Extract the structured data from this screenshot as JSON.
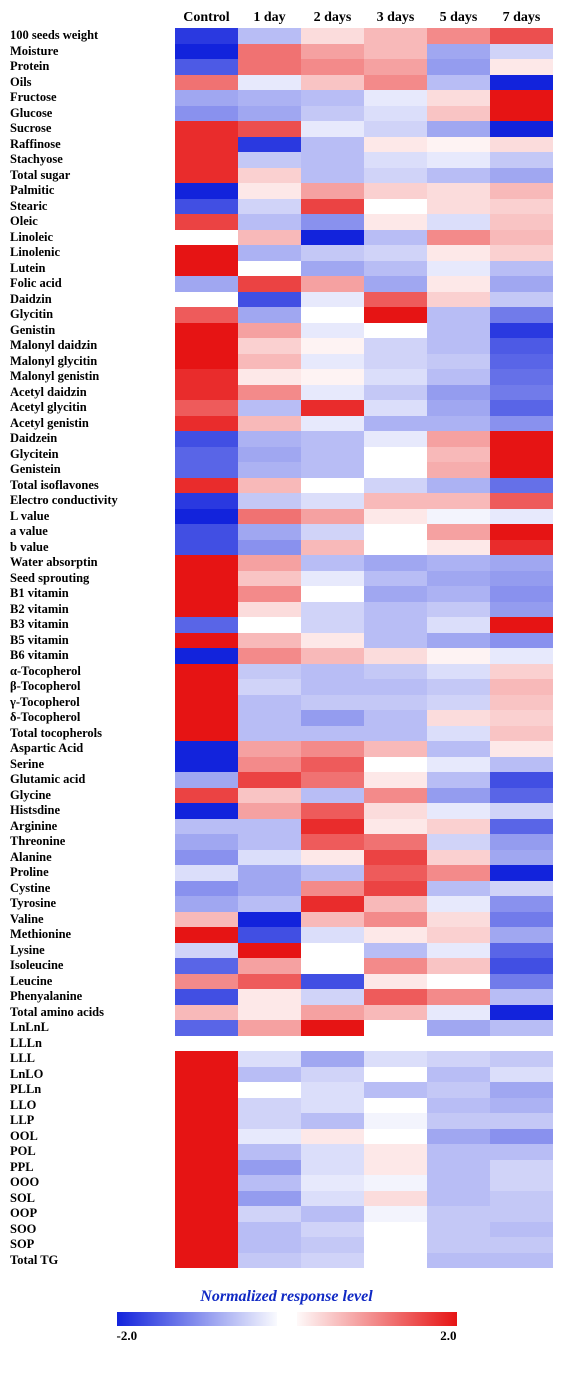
{
  "columns": [
    "Control",
    "1 day",
    "2 days",
    "3 days",
    "5 days",
    "7 days"
  ],
  "legend": {
    "title": "Normalized response level",
    "min": "-2.0",
    "max": "2.0"
  },
  "rows": [
    {
      "label": "100 seeds weight",
      "v": [
        -1.8,
        -0.6,
        0.3,
        0.6,
        1.0,
        1.5
      ]
    },
    {
      "label": "Moisture",
      "v": [
        -2.0,
        1.2,
        0.8,
        0.6,
        -0.8,
        -0.4
      ]
    },
    {
      "label": "Protein",
      "v": [
        -1.5,
        1.2,
        1.0,
        0.8,
        -0.9,
        0.2
      ]
    },
    {
      "label": "Oils",
      "v": [
        1.2,
        -0.2,
        0.5,
        1.0,
        -0.6,
        -2.0
      ]
    },
    {
      "label": "Fructose",
      "v": [
        -0.8,
        -0.7,
        -0.6,
        -0.2,
        0.3,
        2.0
      ]
    },
    {
      "label": "Glucose",
      "v": [
        -1.0,
        -0.8,
        -0.5,
        -0.3,
        0.5,
        2.0
      ]
    },
    {
      "label": "Sucrose",
      "v": [
        1.8,
        1.5,
        -0.2,
        -0.4,
        -0.8,
        -2.0
      ]
    },
    {
      "label": "Raffinose",
      "v": [
        1.8,
        -1.8,
        -0.6,
        0.2,
        0.1,
        0.3
      ]
    },
    {
      "label": "Stachyose",
      "v": [
        1.8,
        -0.5,
        -0.6,
        -0.3,
        -0.2,
        -0.5
      ]
    },
    {
      "label": "Total sugar",
      "v": [
        1.8,
        0.4,
        -0.6,
        -0.4,
        -0.6,
        -0.8
      ]
    },
    {
      "label": "Palmitic",
      "v": [
        -2.0,
        0.2,
        0.8,
        0.4,
        0.3,
        0.6
      ]
    },
    {
      "label": "Stearic",
      "v": [
        -1.6,
        -0.4,
        1.6,
        0.0,
        0.3,
        0.4
      ]
    },
    {
      "label": "Oleic",
      "v": [
        1.6,
        -0.6,
        -1.0,
        0.2,
        -0.3,
        0.5
      ]
    },
    {
      "label": "Linoleic",
      "v": [
        null,
        0.6,
        -2.0,
        -0.6,
        1.0,
        0.6
      ]
    },
    {
      "label": "Linolenic",
      "v": [
        2.0,
        -0.7,
        -0.5,
        -0.4,
        0.2,
        0.4
      ]
    },
    {
      "label": "Lutein",
      "v": [
        2.0,
        0.0,
        -0.8,
        -0.6,
        -0.2,
        -0.6
      ]
    },
    {
      "label": "Folic acid",
      "v": [
        -0.8,
        1.6,
        0.8,
        -0.8,
        0.2,
        -0.8
      ]
    },
    {
      "label": "Daidzin",
      "v": [
        null,
        -1.6,
        -0.2,
        1.4,
        0.4,
        -0.5
      ]
    },
    {
      "label": "Glycitin",
      "v": [
        1.4,
        -0.8,
        0.0,
        2.0,
        -0.6,
        -1.2
      ]
    },
    {
      "label": "Genistin",
      "v": [
        2.0,
        0.8,
        -0.2,
        0.0,
        -0.6,
        -1.8
      ]
    },
    {
      "label": "Malonyl daidzin",
      "v": [
        2.0,
        0.4,
        0.1,
        -0.4,
        -0.6,
        -1.5
      ]
    },
    {
      "label": "Malonyl glycitin",
      "v": [
        2.0,
        0.6,
        -0.2,
        -0.4,
        -0.5,
        -1.4
      ]
    },
    {
      "label": "Malonyl genistin",
      "v": [
        1.8,
        0.2,
        0.1,
        -0.3,
        -0.6,
        -1.3
      ]
    },
    {
      "label": "Acetyl daidzin",
      "v": [
        1.8,
        1.0,
        -0.2,
        -0.5,
        -0.9,
        -1.2
      ]
    },
    {
      "label": "Acetyl glycitin",
      "v": [
        1.4,
        -0.6,
        1.8,
        -0.3,
        -0.8,
        -1.4
      ]
    },
    {
      "label": "Acetyl genistin",
      "v": [
        1.8,
        0.6,
        -0.2,
        -0.7,
        -0.7,
        -1.0
      ]
    },
    {
      "label": "Daidzein",
      "v": [
        -1.6,
        -0.7,
        -0.6,
        -0.2,
        0.8,
        2.0
      ]
    },
    {
      "label": "Glycitein",
      "v": [
        -1.4,
        -0.8,
        -0.6,
        0.0,
        0.6,
        2.0
      ]
    },
    {
      "label": "Genistein",
      "v": [
        -1.4,
        -0.7,
        -0.6,
        0.0,
        0.7,
        2.0
      ]
    },
    {
      "label": "Total isoflavones",
      "v": [
        1.8,
        0.6,
        0.0,
        -0.4,
        -0.7,
        -1.3
      ]
    },
    {
      "label": "Electro conductivity",
      "v": [
        -1.8,
        -0.5,
        -0.3,
        0.6,
        0.6,
        1.4
      ]
    },
    {
      "label": "L value",
      "v": [
        -2.0,
        1.2,
        0.8,
        0.2,
        -0.1,
        -0.2
      ]
    },
    {
      "label": "a value",
      "v": [
        -1.6,
        -0.8,
        -0.4,
        0.0,
        0.8,
        2.0
      ]
    },
    {
      "label": "b value",
      "v": [
        -1.6,
        -1.0,
        0.6,
        0.0,
        0.2,
        1.8
      ]
    },
    {
      "label": "Water absorptin",
      "v": [
        2.0,
        0.8,
        -0.6,
        -0.8,
        -0.7,
        -0.8
      ]
    },
    {
      "label": "Seed sprouting",
      "v": [
        2.0,
        0.5,
        -0.2,
        -0.6,
        -0.8,
        -0.9
      ]
    },
    {
      "label": "B1 vitamin",
      "v": [
        2.0,
        1.0,
        0.0,
        -0.8,
        -0.7,
        -1.0
      ]
    },
    {
      "label": "B2 vitamin",
      "v": [
        2.0,
        0.3,
        -0.4,
        -0.6,
        -0.5,
        -0.9
      ]
    },
    {
      "label": "B3 vitamin",
      "v": [
        -1.4,
        null,
        -0.4,
        -0.6,
        -0.3,
        2.0
      ]
    },
    {
      "label": "B5 vitamin",
      "v": [
        2.0,
        0.6,
        0.2,
        -0.6,
        -0.8,
        -1.0
      ]
    },
    {
      "label": "B6 vitamin",
      "v": [
        -2.0,
        1.0,
        0.6,
        0.3,
        0.1,
        -0.2
      ]
    },
    {
      "label": "α-Tocopherol",
      "v": [
        2.0,
        -0.5,
        -0.6,
        -0.5,
        -0.3,
        0.4
      ]
    },
    {
      "label": "β-Tocopherol",
      "v": [
        2.0,
        -0.4,
        -0.6,
        -0.6,
        -0.5,
        0.6
      ]
    },
    {
      "label": "γ-Tocopherol",
      "v": [
        2.0,
        -0.6,
        -0.5,
        -0.5,
        -0.4,
        0.5
      ]
    },
    {
      "label": "δ-Tocopherol",
      "v": [
        2.0,
        -0.6,
        -0.9,
        -0.6,
        0.3,
        0.4
      ]
    },
    {
      "label": "Total tocopherols",
      "v": [
        2.0,
        -0.6,
        -0.6,
        -0.6,
        -0.3,
        0.5
      ]
    },
    {
      "label": "Aspartic Acid",
      "v": [
        -2.0,
        0.8,
        1.0,
        0.6,
        -0.6,
        0.2
      ]
    },
    {
      "label": "Serine",
      "v": [
        -2.0,
        1.0,
        1.4,
        0.0,
        -0.2,
        -0.6
      ]
    },
    {
      "label": "Glutamic acid",
      "v": [
        -0.8,
        1.6,
        1.2,
        0.2,
        -0.6,
        -1.6
      ]
    },
    {
      "label": "Glycine",
      "v": [
        1.6,
        0.5,
        -0.6,
        1.0,
        -0.9,
        -1.4
      ]
    },
    {
      "label": "Histsdine",
      "v": [
        -2.0,
        0.8,
        1.4,
        0.3,
        -0.2,
        -0.4
      ]
    },
    {
      "label": "Arginine",
      "v": [
        -0.6,
        -0.6,
        1.8,
        0.2,
        0.4,
        -1.4
      ]
    },
    {
      "label": "Threonine",
      "v": [
        -0.8,
        -0.6,
        1.4,
        1.2,
        -0.4,
        -0.9
      ]
    },
    {
      "label": "Alanine",
      "v": [
        -1.0,
        -0.3,
        0.2,
        1.6,
        0.4,
        -0.8
      ]
    },
    {
      "label": "Proline",
      "v": [
        -0.3,
        -0.8,
        -0.6,
        1.4,
        1.0,
        -2.0
      ]
    },
    {
      "label": "Cystine",
      "v": [
        -1.0,
        -0.8,
        1.0,
        1.6,
        -0.6,
        -0.4
      ]
    },
    {
      "label": "Tyrosine",
      "v": [
        -0.8,
        -0.6,
        1.8,
        0.6,
        -0.2,
        -1.0
      ]
    },
    {
      "label": "Valine",
      "v": [
        0.6,
        -2.0,
        0.6,
        1.0,
        0.3,
        -1.2
      ]
    },
    {
      "label": "Methionine",
      "v": [
        2.0,
        -1.6,
        -0.3,
        0.2,
        0.4,
        -0.8
      ]
    },
    {
      "label": "Lysine",
      "v": [
        -0.4,
        2.0,
        0.0,
        -0.6,
        -0.2,
        -1.4
      ]
    },
    {
      "label": "Isoleucine",
      "v": [
        -1.4,
        0.8,
        0.0,
        1.0,
        0.5,
        -1.6
      ]
    },
    {
      "label": "Leucine",
      "v": [
        1.0,
        1.4,
        -1.6,
        0.2,
        0.0,
        -1.2
      ]
    },
    {
      "label": "Phenyalanine",
      "v": [
        -1.6,
        0.2,
        -0.4,
        1.4,
        1.0,
        -0.6
      ]
    },
    {
      "label": "Total amino acids",
      "v": [
        0.6,
        0.2,
        0.8,
        0.6,
        -0.2,
        -2.0
      ]
    },
    {
      "label": "LnLnL",
      "v": [
        -1.4,
        0.8,
        2.0,
        0.0,
        -0.8,
        -0.6
      ]
    },
    {
      "label": "LLLn",
      "v": [
        null,
        null,
        null,
        null,
        null,
        null
      ]
    },
    {
      "label": "LLL",
      "v": [
        2.0,
        -0.3,
        -0.8,
        -0.3,
        -0.4,
        -0.5
      ]
    },
    {
      "label": "LnLO",
      "v": [
        2.0,
        -0.6,
        -0.4,
        0.0,
        -0.6,
        -0.3
      ]
    },
    {
      "label": "PLLn",
      "v": [
        2.0,
        0.0,
        -0.3,
        -0.6,
        -0.5,
        -0.8
      ]
    },
    {
      "label": "LLO",
      "v": [
        2.0,
        -0.4,
        -0.3,
        0.0,
        -0.6,
        -0.7
      ]
    },
    {
      "label": "LLP",
      "v": [
        2.0,
        -0.4,
        -0.6,
        -0.1,
        -0.5,
        -0.5
      ]
    },
    {
      "label": "OOL",
      "v": [
        2.0,
        -0.2,
        0.2,
        0.0,
        -0.8,
        -1.0
      ]
    },
    {
      "label": "POL",
      "v": [
        2.0,
        -0.6,
        -0.3,
        0.2,
        -0.6,
        -0.6
      ]
    },
    {
      "label": "PPL",
      "v": [
        2.0,
        -0.9,
        -0.3,
        0.2,
        -0.6,
        -0.4
      ]
    },
    {
      "label": "OOO",
      "v": [
        2.0,
        -0.6,
        -0.2,
        -0.1,
        -0.6,
        -0.4
      ]
    },
    {
      "label": "SOL",
      "v": [
        2.0,
        -0.9,
        -0.3,
        0.3,
        -0.6,
        -0.5
      ]
    },
    {
      "label": "OOP",
      "v": [
        2.0,
        -0.4,
        -0.6,
        -0.1,
        -0.5,
        -0.5
      ]
    },
    {
      "label": "SOO",
      "v": [
        2.0,
        -0.6,
        -0.4,
        0.0,
        -0.5,
        -0.6
      ]
    },
    {
      "label": "SOP",
      "v": [
        2.0,
        -0.6,
        -0.5,
        0.0,
        -0.5,
        -0.5
      ]
    },
    {
      "label": "Total TG",
      "v": [
        2.0,
        -0.5,
        -0.4,
        0.0,
        -0.6,
        -0.6
      ]
    }
  ]
}
